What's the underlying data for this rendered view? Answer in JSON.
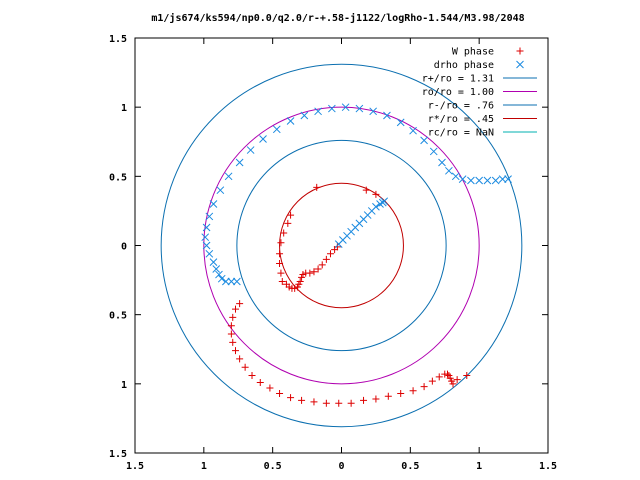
{
  "chart_data": {
    "type": "scatter",
    "title": "m1/js674/ks594/np0.0/q2.0/r-+.58-j1122/logRho-1.544/M3.98/2048",
    "xlabel": "",
    "ylabel": "",
    "xlim": [
      -1.5,
      1.5
    ],
    "ylim": [
      -1.5,
      1.5
    ],
    "x_ticks": [
      -1.5,
      -1,
      -0.5,
      0,
      0.5,
      1,
      1.5
    ],
    "x_tick_labels": [
      "1.5",
      "1",
      "0.5",
      "0",
      "0.5",
      "1",
      "1.5"
    ],
    "y_ticks": [
      1.5,
      1,
      0.5,
      0,
      -0.5,
      -1,
      -1.5
    ],
    "y_tick_labels": [
      "1.5",
      "1",
      "0.5",
      "0",
      "0.5",
      "1",
      "1.5"
    ],
    "grid": false,
    "legend_position": "top-right",
    "circles": [
      {
        "name": "r+/ro = 1.31",
        "radius": 1.31,
        "color": "#0b6fb0"
      },
      {
        "name": "ro/ro = 1.00",
        "radius": 1.0,
        "color": "#b000b0"
      },
      {
        "name": "r-/ro = .76",
        "radius": 0.76,
        "color": "#0b6fb0"
      },
      {
        "name": "r*/ro = .45",
        "radius": 0.45,
        "color": "#c00000"
      },
      {
        "name": "rc/ro = NaN",
        "radius": null,
        "color": "#00b0b0"
      }
    ],
    "series": [
      {
        "name": "W phase",
        "marker": "plus",
        "color": "#dd0000",
        "points": [
          [
            -0.43,
            -0.26
          ],
          [
            -0.4,
            -0.28
          ],
          [
            -0.38,
            -0.3
          ],
          [
            -0.36,
            -0.31
          ],
          [
            -0.34,
            -0.31
          ],
          [
            -0.32,
            -0.3
          ],
          [
            -0.31,
            -0.28
          ],
          [
            -0.3,
            -0.26
          ],
          [
            -0.29,
            -0.23
          ],
          [
            -0.28,
            -0.21
          ],
          [
            -0.26,
            -0.2
          ],
          [
            -0.23,
            -0.2
          ],
          [
            -0.2,
            -0.19
          ],
          [
            -0.17,
            -0.17
          ],
          [
            -0.14,
            -0.14
          ],
          [
            -0.11,
            -0.1
          ],
          [
            -0.08,
            -0.06
          ],
          [
            -0.05,
            -0.03
          ],
          [
            -0.03,
            -0.01
          ],
          [
            -0.44,
            -0.2
          ],
          [
            -0.45,
            -0.13
          ],
          [
            -0.45,
            -0.06
          ],
          [
            -0.44,
            0.02
          ],
          [
            -0.42,
            0.09
          ],
          [
            -0.39,
            0.16
          ],
          [
            -0.37,
            0.22
          ],
          [
            -0.18,
            0.42
          ],
          [
            0.18,
            0.4
          ],
          [
            0.25,
            0.37
          ],
          [
            -0.74,
            -0.42
          ],
          [
            -0.77,
            -0.46
          ],
          [
            -0.79,
            -0.52
          ],
          [
            -0.8,
            -0.58
          ],
          [
            -0.8,
            -0.64
          ],
          [
            -0.79,
            -0.7
          ],
          [
            -0.77,
            -0.76
          ],
          [
            -0.74,
            -0.82
          ],
          [
            -0.7,
            -0.88
          ],
          [
            -0.65,
            -0.94
          ],
          [
            -0.59,
            -0.99
          ],
          [
            -0.52,
            -1.03
          ],
          [
            -0.45,
            -1.07
          ],
          [
            -0.37,
            -1.1
          ],
          [
            -0.29,
            -1.12
          ],
          [
            -0.2,
            -1.13
          ],
          [
            -0.11,
            -1.14
          ],
          [
            -0.02,
            -1.14
          ],
          [
            0.07,
            -1.14
          ],
          [
            0.16,
            -1.12
          ],
          [
            0.25,
            -1.11
          ],
          [
            0.34,
            -1.09
          ],
          [
            0.43,
            -1.07
          ],
          [
            0.52,
            -1.05
          ],
          [
            0.6,
            -1.02
          ],
          [
            0.66,
            -0.98
          ],
          [
            0.71,
            -0.95
          ],
          [
            0.75,
            -0.93
          ],
          [
            0.77,
            -0.93
          ],
          [
            0.78,
            -0.94
          ],
          [
            0.79,
            -0.96
          ],
          [
            0.8,
            -0.98
          ],
          [
            0.81,
            -1.0
          ],
          [
            0.84,
            -0.97
          ],
          [
            0.91,
            -0.94
          ]
        ]
      },
      {
        "name": "drho phase",
        "marker": "x",
        "color": "#1a8ae0",
        "points": [
          [
            -0.02,
            0.01
          ],
          [
            0.01,
            0.04
          ],
          [
            0.04,
            0.07
          ],
          [
            0.07,
            0.1
          ],
          [
            0.1,
            0.13
          ],
          [
            0.13,
            0.16
          ],
          [
            0.16,
            0.19
          ],
          [
            0.19,
            0.22
          ],
          [
            0.22,
            0.25
          ],
          [
            0.25,
            0.28
          ],
          [
            0.28,
            0.3
          ],
          [
            0.3,
            0.31
          ],
          [
            0.31,
            0.32
          ],
          [
            -0.76,
            -0.26
          ],
          [
            -0.8,
            -0.26
          ],
          [
            -0.84,
            -0.26
          ],
          [
            -0.87,
            -0.24
          ],
          [
            -0.89,
            -0.21
          ],
          [
            -0.91,
            -0.17
          ],
          [
            -0.93,
            -0.12
          ],
          [
            -0.96,
            -0.06
          ],
          [
            -0.98,
            0.0
          ],
          [
            -0.99,
            0.06
          ],
          [
            -0.98,
            0.13
          ],
          [
            -0.96,
            0.21
          ],
          [
            -0.93,
            0.3
          ],
          [
            -0.88,
            0.4
          ],
          [
            -0.82,
            0.5
          ],
          [
            -0.74,
            0.6
          ],
          [
            -0.66,
            0.69
          ],
          [
            -0.57,
            0.77
          ],
          [
            -0.47,
            0.84
          ],
          [
            -0.37,
            0.9
          ],
          [
            -0.27,
            0.94
          ],
          [
            -0.17,
            0.97
          ],
          [
            -0.07,
            0.99
          ],
          [
            0.03,
            1.0
          ],
          [
            0.13,
            0.99
          ],
          [
            0.23,
            0.97
          ],
          [
            0.33,
            0.94
          ],
          [
            0.43,
            0.89
          ],
          [
            0.52,
            0.83
          ],
          [
            0.6,
            0.76
          ],
          [
            0.67,
            0.68
          ],
          [
            0.73,
            0.6
          ],
          [
            0.78,
            0.54
          ],
          [
            0.83,
            0.5
          ],
          [
            0.88,
            0.48
          ],
          [
            0.94,
            0.47
          ],
          [
            1.0,
            0.47
          ],
          [
            1.06,
            0.47
          ],
          [
            1.12,
            0.47
          ],
          [
            1.17,
            0.48
          ],
          [
            1.21,
            0.48
          ]
        ]
      }
    ]
  }
}
